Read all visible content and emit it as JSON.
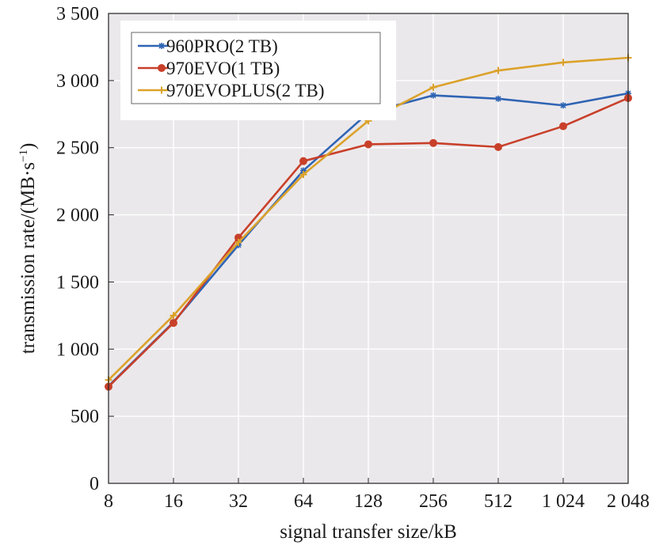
{
  "chart_data": {
    "type": "line",
    "title": "",
    "xlabel": "signal transfer size/kB",
    "ylabel_prefix": "transmission rate/(MB·s",
    "ylabel_exp": "−1",
    "ylabel_suffix": ")",
    "x_scale": "log2",
    "categories": [
      "8",
      "16",
      "32",
      "64",
      "128",
      "256",
      "512",
      "1 024",
      "2 048"
    ],
    "x": [
      8,
      16,
      32,
      64,
      128,
      256,
      512,
      1024,
      2048
    ],
    "ylim": [
      0,
      3500
    ],
    "yticks": [
      0,
      500,
      1000,
      1500,
      2000,
      2500,
      3000,
      3500
    ],
    "ytick_labels": [
      "0",
      "500",
      "1 000",
      "1 500",
      "2 000",
      "2 500",
      "3 000",
      "3 500"
    ],
    "grid": true,
    "legend_position": "top-left",
    "series": [
      {
        "name": "960PRO(2 TB)",
        "color": "#2f64b4",
        "marker": "star",
        "values": [
          725,
          1200,
          1775,
          2330,
          2760,
          2890,
          2865,
          2815,
          2905
        ]
      },
      {
        "name": "970EVO(1 TB)",
        "color": "#c8402a",
        "marker": "circle",
        "values": [
          720,
          1195,
          1830,
          2400,
          2525,
          2535,
          2505,
          2660,
          2870
        ]
      },
      {
        "name": "970EVOPLUS(2 TB)",
        "color": "#dba22a",
        "marker": "plus",
        "values": [
          770,
          1250,
          1795,
          2300,
          2700,
          2950,
          3075,
          3135,
          3170
        ]
      }
    ]
  }
}
